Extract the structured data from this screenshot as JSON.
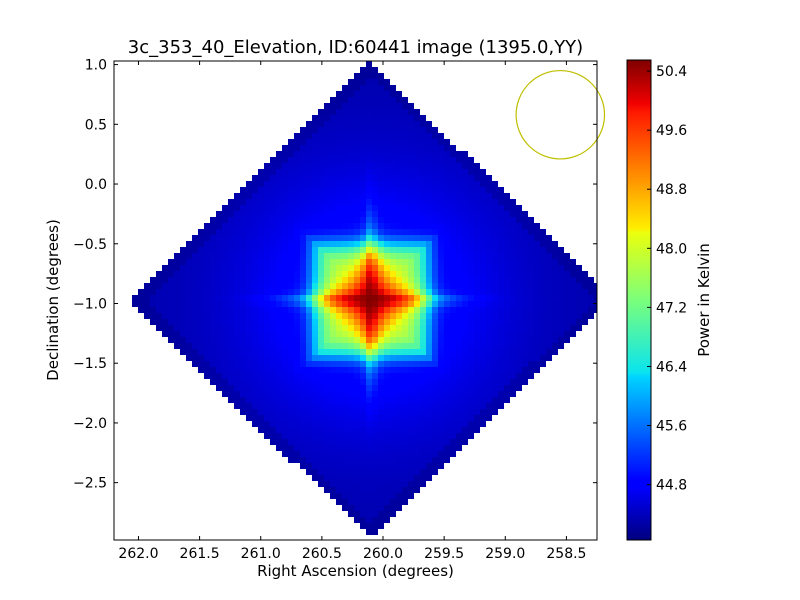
{
  "chart_data": {
    "type": "heatmap",
    "title": "3c_353_40_Elevation, ID:60441 image (1395.0,YY)",
    "xlabel": "Right Ascension (degrees)",
    "ylabel": "Declination (degrees)",
    "colorbar_label": "Power in Kelvin",
    "xlim": [
      262.2,
      258.25
    ],
    "ylim": [
      -2.98,
      1.03
    ],
    "x_ticks": [
      262.0,
      261.5,
      261.0,
      260.5,
      260.0,
      259.5,
      259.0,
      258.5
    ],
    "x_tick_labels": [
      "262.0",
      "261.5",
      "261.0",
      "260.5",
      "260.0",
      "259.5",
      "259.0",
      "258.5"
    ],
    "y_ticks": [
      1.0,
      0.5,
      0.0,
      -0.5,
      -1.0,
      -1.5,
      -2.0,
      -2.5
    ],
    "y_tick_labels": [
      "1.0",
      "0.5",
      "0.0",
      "−0.5",
      "−1.0",
      "−1.5",
      "−2.0",
      "−2.5"
    ],
    "colorbar_range": [
      44.05,
      50.55
    ],
    "colorbar_ticks": [
      44.8,
      45.6,
      46.4,
      47.2,
      48.0,
      48.8,
      49.6,
      50.4
    ],
    "colorbar_tick_labels": [
      "44.8",
      "45.6",
      "46.4",
      "47.2",
      "48.0",
      "48.8",
      "49.6",
      "50.4"
    ],
    "colormap": "jet",
    "map_region": {
      "shape": "diamond",
      "center_ra": 260.1,
      "center_dec": -0.97,
      "half_extent_ra": 1.98,
      "half_extent_dec": 2.0
    },
    "peak": {
      "ra": 260.1,
      "dec": -0.97,
      "value": 50.5
    },
    "background_value": 44.1,
    "beam_circle": {
      "ra": 258.55,
      "dec": 0.58,
      "radius_dec": 0.37,
      "color": "#bfbf00"
    }
  }
}
